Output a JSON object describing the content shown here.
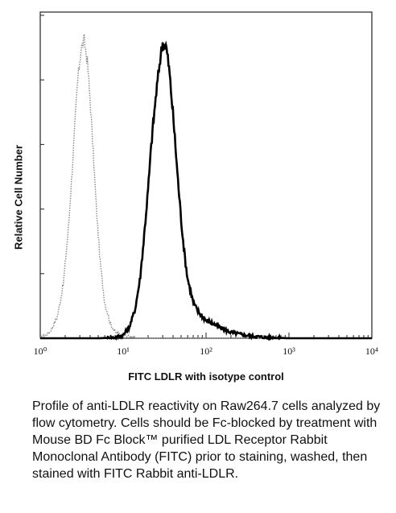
{
  "chart_data": {
    "type": "line",
    "xlabel": "FITC LDLR with isotype control",
    "ylabel": "Relative Cell Number",
    "x_scale": "log",
    "xlim": [
      1,
      10000
    ],
    "ylim": [
      0,
      1
    ],
    "grid": false,
    "tick_labels": [
      "10⁰",
      "10¹",
      "10²",
      "10³",
      "10⁴"
    ],
    "tick_values": [
      1,
      10,
      100,
      1000,
      10000
    ],
    "series": [
      {
        "style": "dotted",
        "color": "#8a8a8a",
        "x": [
          1,
          1.3,
          1.6,
          1.9,
          2.2,
          2.5,
          2.8,
          3.1,
          3.4,
          3.7,
          4.0,
          4.4,
          4.8,
          5.3,
          6,
          7,
          8,
          10,
          12,
          15,
          20,
          30,
          100,
          1000,
          10000
        ],
        "y": [
          0,
          0.02,
          0.07,
          0.18,
          0.38,
          0.62,
          0.85,
          0.97,
          1.0,
          0.93,
          0.8,
          0.6,
          0.42,
          0.25,
          0.12,
          0.05,
          0.02,
          0.01,
          0.005,
          0,
          0,
          0,
          0,
          0,
          0
        ]
      },
      {
        "style": "solid",
        "color": "#000000",
        "x": [
          1,
          5,
          8,
          10,
          12,
          14,
          16,
          18,
          20,
          22,
          25,
          28,
          30,
          33,
          36,
          40,
          45,
          50,
          55,
          60,
          70,
          80,
          100,
          120,
          150,
          200,
          300,
          500,
          1000,
          10000
        ],
        "y": [
          0,
          0,
          0.002,
          0.01,
          0.04,
          0.1,
          0.2,
          0.35,
          0.5,
          0.66,
          0.82,
          0.94,
          0.99,
          0.98,
          0.9,
          0.75,
          0.56,
          0.4,
          0.28,
          0.2,
          0.12,
          0.09,
          0.06,
          0.05,
          0.035,
          0.02,
          0.01,
          0.003,
          0,
          0
        ]
      }
    ]
  },
  "caption": "Profile of anti-LDLR reactivity on Raw264.7 cells analyzed by flow cytometry. Cells should be Fc-blocked by treatment with Mouse BD Fc Block™ purified LDL Receptor Rabbit Monoclonal Antibody (FITC) prior to staining, washed, then stained with FITC Rabbit anti-LDLR."
}
